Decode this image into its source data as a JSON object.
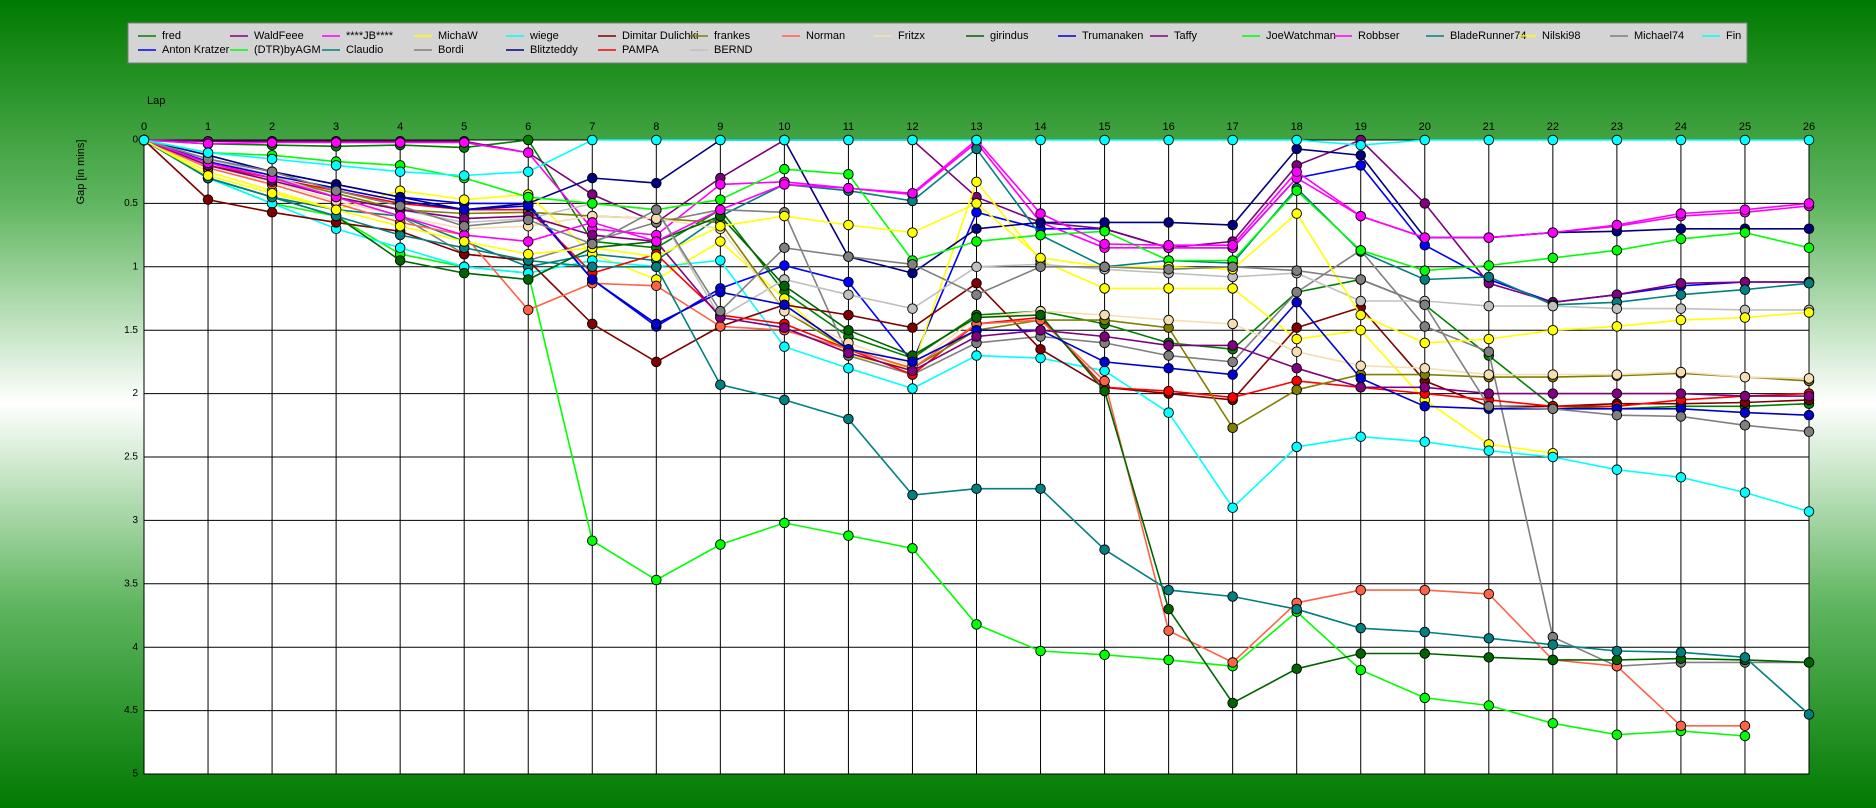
{
  "chart_data": {
    "type": "line",
    "x_label": "Lap",
    "y_label": "Gap [in mins]",
    "x": [
      0,
      1,
      2,
      3,
      4,
      5,
      6,
      7,
      8,
      9,
      10,
      11,
      12,
      13,
      14,
      15,
      16,
      17,
      18,
      19,
      20,
      21,
      22,
      23,
      24,
      25,
      26
    ],
    "xlim": [
      0,
      26
    ],
    "xticks": [
      0,
      1,
      2,
      3,
      4,
      5,
      6,
      7,
      8,
      9,
      10,
      11,
      12,
      13,
      14,
      15,
      16,
      17,
      18,
      19,
      20,
      21,
      22,
      23,
      24,
      25,
      26
    ],
    "ylim": [
      0,
      5
    ],
    "yticks": [
      0,
      0.5,
      1,
      1.5,
      2,
      2.5,
      3,
      3.5,
      4,
      4.5,
      5
    ],
    "y_inverted": true,
    "grid": true,
    "legend": "top",
    "series": [
      {
        "name": "fred",
        "color": "#008000",
        "values": [
          0,
          0.03,
          0.04,
          0.05,
          0.04,
          0.06,
          0,
          0.8,
          0.85,
          0.55,
          1.2,
          1.55,
          1.72,
          1.38,
          1.35,
          1.45,
          1.6,
          1.65,
          1.2,
          1.1,
          1.3,
          1.7,
          2.1,
          2.12,
          2.1,
          2.1,
          2.08
        ]
      },
      {
        "name": "Anton Kratzer",
        "color": "#0000ff",
        "values": [
          0,
          0.15,
          0.25,
          0.35,
          0.45,
          0.5,
          0.5,
          1.1,
          1.47,
          1.17,
          0.99,
          1.12,
          1.75,
          0.57,
          0.7,
          0.7,
          0.85,
          0.85,
          0.3,
          0.2,
          0.83,
          1.1,
          1.28,
          1.22,
          1.15,
          1.12,
          1.12
        ]
      },
      {
        "name": "WaldFeee",
        "color": "#800080",
        "values": [
          0,
          0.01,
          0.01,
          0.01,
          0.01,
          0.01,
          0.1,
          0.43,
          0.65,
          0.3,
          0,
          0,
          0,
          0.45,
          0.65,
          0.7,
          0.85,
          0.8,
          0.2,
          0,
          0.5,
          1.13,
          1.28,
          1.22,
          1.13,
          1.12,
          1.12
        ]
      },
      {
        "name": "(DTR)byAGM",
        "color": "#00ff00",
        "values": [
          0,
          0.3,
          0.5,
          0.6,
          0.9,
          1.0,
          1.05,
          3.16,
          3.47,
          3.19,
          3.02,
          3.12,
          3.22,
          3.82,
          4.03,
          4.06,
          4.1,
          4.15,
          3.72,
          4.18,
          4.4,
          4.46,
          4.6,
          4.69,
          4.66,
          4.7,
          null
        ]
      },
      {
        "name": "****JB****",
        "color": "#ff00ff",
        "values": [
          0,
          0.03,
          0.02,
          0.02,
          0.02,
          0.02,
          0.1,
          0.7,
          0.75,
          0.35,
          0.33,
          0.38,
          0.43,
          0.02,
          0.65,
          0.85,
          0.85,
          0.85,
          0.3,
          0.6,
          0.77,
          0.77,
          0.73,
          0.68,
          0.6,
          0.57,
          0.52
        ]
      },
      {
        "name": "Claudio",
        "color": "#008080",
        "values": [
          0,
          0.3,
          0.45,
          0.55,
          0.6,
          0.8,
          1.0,
          0.9,
          0.95,
          0.6,
          0.35,
          0.4,
          0.48,
          0.07,
          0.75,
          1.0,
          0.95,
          0.97,
          0.38,
          0.88,
          1.1,
          1.08,
          1.3,
          1.28,
          1.22,
          1.18,
          1.13
        ]
      },
      {
        "name": "MichaW",
        "color": "#ffff00",
        "values": [
          0,
          0.25,
          0.4,
          0.55,
          0.4,
          0.47,
          0.43,
          0.9,
          1.1,
          0.8,
          1.25,
          1.7,
          1.8,
          0.33,
          0.95,
          1.17,
          1.17,
          1.17,
          1.57,
          1.5,
          2.05,
          2.4,
          2.47,
          null,
          null,
          null,
          null
        ]
      },
      {
        "name": "Bordi",
        "color": "#808080",
        "values": [
          0,
          0.2,
          0.3,
          0.45,
          0.6,
          0.9,
          0.95,
          0.8,
          0.65,
          0.55,
          0.57,
          1.7,
          1.85,
          1.6,
          1.55,
          1.6,
          1.7,
          1.75,
          1.2,
          0.87,
          1.47,
          1.67,
          3.92,
          4.15,
          4.12,
          4.12,
          4.12
        ]
      },
      {
        "name": "wiege",
        "color": "#00ffff",
        "values": [
          0,
          0.3,
          0.5,
          0.7,
          0.85,
          1.0,
          1.05,
          0.95,
          1.0,
          0.95,
          1.63,
          1.8,
          1.96,
          1.7,
          1.72,
          1.82,
          2.15,
          2.9,
          2.42,
          2.34,
          2.38,
          2.45,
          2.5,
          2.6,
          2.66,
          2.78,
          2.93
        ]
      },
      {
        "name": "Blitzteddy",
        "color": "#000080",
        "values": [
          0,
          0.12,
          0.25,
          0.35,
          0.45,
          0.55,
          0.5,
          0.3,
          0.34,
          0,
          0,
          0.92,
          1.05,
          0.7,
          0.65,
          0.65,
          0.65,
          0.67,
          0.07,
          0.12,
          0.77,
          0.77,
          0.73,
          0.72,
          0.7,
          0.7,
          0.7
        ]
      },
      {
        "name": "Dimitar Dulichki",
        "color": "#800000",
        "values": [
          0,
          0.47,
          0.57,
          0.65,
          0.72,
          0.9,
          0.95,
          1.45,
          1.75,
          1.47,
          1.3,
          1.38,
          1.48,
          1.13,
          1.65,
          1.95,
          2.0,
          2.05,
          1.48,
          1.32,
          1.9,
          2.1,
          2.1,
          2.08,
          2.08,
          2.07,
          2.05
        ]
      },
      {
        "name": "PAMPA",
        "color": "#ff0000",
        "values": [
          0,
          0.2,
          0.3,
          0.4,
          0.5,
          0.55,
          0.55,
          1.05,
          0.9,
          1.38,
          1.45,
          1.65,
          1.85,
          1.45,
          1.4,
          1.95,
          1.98,
          2.03,
          1.9,
          1.95,
          2.0,
          2.05,
          2.1,
          2.1,
          2.05,
          2.02,
          2.0
        ]
      },
      {
        "name": "frankes",
        "color": "#808000",
        "values": [
          0,
          0.18,
          0.3,
          0.42,
          0.55,
          0.58,
          0.57,
          0.6,
          0.62,
          0.65,
          1.35,
          1.65,
          1.8,
          1.5,
          1.42,
          1.42,
          1.48,
          2.27,
          1.97,
          1.85,
          1.85,
          1.87,
          1.87,
          1.86,
          1.84,
          1.87,
          1.9
        ]
      },
      {
        "name": "BERND",
        "color": "#c0c0c0",
        "values": [
          0,
          0.15,
          0.28,
          0.45,
          0.55,
          0.65,
          0.62,
          0.5,
          0.55,
          1.4,
          1.1,
          1.22,
          1.33,
          1.0,
          0.98,
          1.02,
          1.05,
          1.08,
          1.05,
          1.27,
          1.27,
          1.31,
          1.31,
          1.33,
          1.33,
          1.34,
          1.34
        ]
      },
      {
        "name": "Norman",
        "color": "#ff6347",
        "values": [
          0,
          0.22,
          0.35,
          0.5,
          0.65,
          0.75,
          1.34,
          1.13,
          1.15,
          1.47,
          1.5,
          1.65,
          1.8,
          1.45,
          1.42,
          1.9,
          3.87,
          4.12,
          3.65,
          3.55,
          3.55,
          3.58,
          4.1,
          4.15,
          4.62,
          4.62,
          null
        ]
      },
      {
        "name": "Fritzx",
        "color": "#f5deb3",
        "values": [
          0,
          0.2,
          0.33,
          0.48,
          0.6,
          0.7,
          0.68,
          0.6,
          0.62,
          0.7,
          1.35,
          1.6,
          1.78,
          1.4,
          1.35,
          1.38,
          1.42,
          1.45,
          1.67,
          1.78,
          1.8,
          1.85,
          1.85,
          1.85,
          1.83,
          1.87,
          1.88
        ]
      },
      {
        "name": "girindus",
        "color": "#006400",
        "values": [
          0,
          0.3,
          0.45,
          0.6,
          0.95,
          1.05,
          1.1,
          0.85,
          0.8,
          0.6,
          1.15,
          1.5,
          1.7,
          1.4,
          1.38,
          1.98,
          3.7,
          4.44,
          4.17,
          4.05,
          4.05,
          4.08,
          4.1,
          4.1,
          4.09,
          4.1,
          4.12
        ]
      },
      {
        "name": "Trumanaken",
        "color": "#0000cd",
        "values": [
          0,
          0.17,
          0.28,
          0.38,
          0.48,
          0.55,
          0.52,
          1.1,
          1.45,
          1.2,
          1.3,
          1.65,
          1.75,
          1.5,
          1.5,
          1.75,
          1.8,
          1.85,
          1.28,
          1.88,
          2.1,
          2.12,
          2.12,
          2.12,
          2.12,
          2.15,
          2.17
        ]
      },
      {
        "name": "Taffy",
        "color": "#800080",
        "values": [
          0,
          0.2,
          0.32,
          0.45,
          0.55,
          0.62,
          0.6,
          0.75,
          0.8,
          1.4,
          1.48,
          1.68,
          1.82,
          1.55,
          1.5,
          1.55,
          1.62,
          1.62,
          1.8,
          1.95,
          1.95,
          2.0,
          2.0,
          2.0,
          2.0,
          2.02,
          2.02
        ]
      },
      {
        "name": "JoeWatchman",
        "color": "#00ff00",
        "values": [
          0,
          0.1,
          0.12,
          0.17,
          0.2,
          0.3,
          0.45,
          0.5,
          0.55,
          0.47,
          0.23,
          0.27,
          0.95,
          0.8,
          0.75,
          0.72,
          0.95,
          0.95,
          0.4,
          0.87,
          1.03,
          0.99,
          0.93,
          0.87,
          0.78,
          0.73,
          0.85
        ]
      },
      {
        "name": "Robbser",
        "color": "#ff00ff",
        "values": [
          0,
          0.18,
          0.3,
          0.45,
          0.6,
          0.75,
          0.8,
          0.65,
          0.8,
          0.55,
          0.35,
          0.38,
          0.42,
          0,
          0.58,
          0.82,
          0.83,
          0.83,
          0.25,
          0.6,
          0.77,
          0.77,
          0.73,
          0.67,
          0.58,
          0.55,
          0.5
        ]
      },
      {
        "name": "BladeRunner74",
        "color": "#008080",
        "values": [
          0,
          0.3,
          0.45,
          0.6,
          0.75,
          0.85,
          0.95,
          1.0,
          1.0,
          1.93,
          2.05,
          2.2,
          2.8,
          2.75,
          2.75,
          3.23,
          3.55,
          3.6,
          3.7,
          3.85,
          3.88,
          3.93,
          3.98,
          4.03,
          4.04,
          4.08,
          4.53
        ]
      },
      {
        "name": "Nilski98",
        "color": "#ffff00",
        "values": [
          0,
          0.28,
          0.42,
          0.55,
          0.68,
          0.8,
          0.9,
          0.85,
          0.92,
          0.68,
          0.6,
          0.67,
          0.73,
          0.5,
          0.93,
          1.0,
          1.0,
          1.02,
          0.58,
          1.38,
          1.6,
          1.57,
          1.5,
          1.47,
          1.42,
          1.4,
          1.36
        ]
      },
      {
        "name": "Michael74",
        "color": "#808080",
        "values": [
          0,
          0.15,
          0.25,
          0.4,
          0.52,
          0.68,
          0.63,
          0.82,
          0.55,
          1.35,
          0.85,
          0.92,
          0.98,
          1.22,
          1.0,
          1.0,
          1.02,
          1.0,
          1.03,
          1.1,
          1.3,
          2.1,
          2.12,
          2.17,
          2.18,
          2.25,
          2.3
        ]
      },
      {
        "name": "Fin",
        "color": "#00ffff",
        "values": [
          0,
          0.1,
          0.15,
          0.2,
          0.25,
          0.28,
          0.25,
          0,
          0,
          0,
          0,
          0,
          0,
          0,
          0,
          0,
          0,
          0,
          0,
          0.04,
          0,
          0,
          0,
          0,
          0,
          0,
          0
        ]
      }
    ]
  }
}
